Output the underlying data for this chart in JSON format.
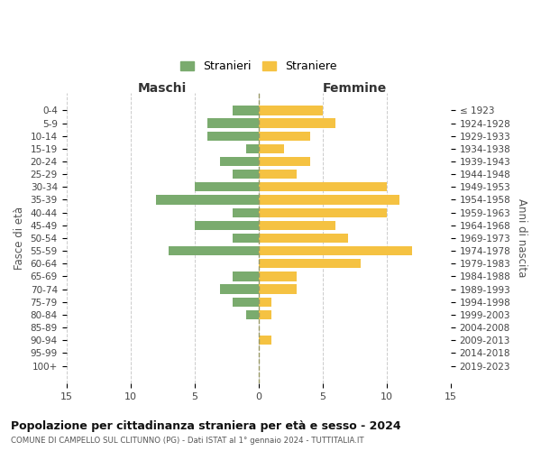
{
  "age_groups": [
    "0-4",
    "5-9",
    "10-14",
    "15-19",
    "20-24",
    "25-29",
    "30-34",
    "35-39",
    "40-44",
    "45-49",
    "50-54",
    "55-59",
    "60-64",
    "65-69",
    "70-74",
    "75-79",
    "80-84",
    "85-89",
    "90-94",
    "95-99",
    "100+"
  ],
  "birth_years": [
    "2019-2023",
    "2014-2018",
    "2009-2013",
    "2004-2008",
    "1999-2003",
    "1994-1998",
    "1989-1993",
    "1984-1988",
    "1979-1983",
    "1974-1978",
    "1969-1973",
    "1964-1968",
    "1959-1963",
    "1954-1958",
    "1949-1953",
    "1944-1948",
    "1939-1943",
    "1934-1938",
    "1929-1933",
    "1924-1928",
    "≤ 1923"
  ],
  "maschi": [
    2,
    4,
    4,
    1,
    3,
    2,
    5,
    8,
    2,
    5,
    2,
    7,
    0,
    2,
    3,
    2,
    1,
    0,
    0,
    0,
    0
  ],
  "femmine": [
    5,
    6,
    4,
    2,
    4,
    3,
    10,
    11,
    10,
    6,
    7,
    12,
    8,
    3,
    3,
    1,
    1,
    0,
    1,
    0,
    0
  ],
  "color_maschi": "#7aab6e",
  "color_femmine": "#f5c242",
  "title": "Popolazione per cittadinanza straniera per età e sesso - 2024",
  "subtitle": "COMUNE DI CAMPELLO SUL CLITUNNO (PG) - Dati ISTAT al 1° gennaio 2024 - TUTTITALIA.IT",
  "xlabel_left": "Maschi",
  "xlabel_right": "Femmine",
  "ylabel_left": "Fasce di età",
  "ylabel_right": "Anni di nascita",
  "legend_maschi": "Stranieri",
  "legend_femmine": "Straniere",
  "xlim": 15,
  "background_color": "#ffffff",
  "grid_color": "#cccccc",
  "dashed_color": "#999966"
}
